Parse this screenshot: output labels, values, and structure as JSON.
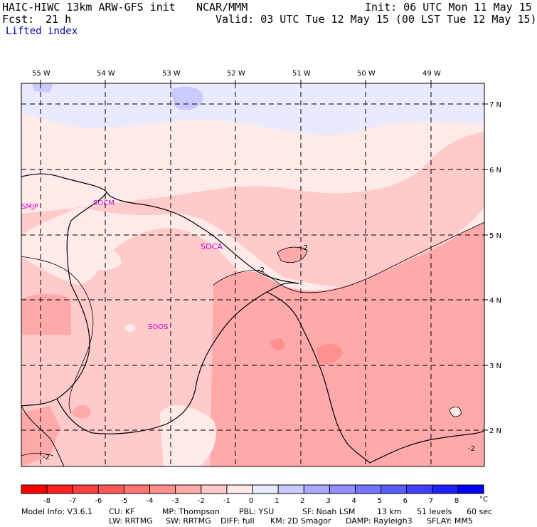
{
  "header": {
    "model": "HAIC-HIWC 13km ARW-GFS init",
    "org": "NCAR/MMM",
    "init": "Init: 06 UTC Mon 11 May 15",
    "fcst_label": "Fcst:",
    "fcst_value": "21 h",
    "valid": "Valid: 03 UTC Tue 12 May 15 (00 LST Tue 12 May 15)",
    "field": "Lifted index"
  },
  "map": {
    "lon_labels": [
      "55 W",
      "54 W",
      "53 W",
      "52 W",
      "51 W",
      "50 W",
      "49 W"
    ],
    "lat_labels": [
      "7 N",
      "6 N",
      "5 N",
      "4 N",
      "3 N",
      "2 N"
    ],
    "stations": [
      "SMJP",
      "SOCM",
      "SOCA",
      "SOOS"
    ],
    "contour_labels": [
      "-2",
      "-2",
      "-2",
      "-2"
    ]
  },
  "colorbar": {
    "ticks": [
      "-8",
      "-7",
      "-6",
      "-5",
      "-4",
      "-3",
      "-2",
      "-1",
      "0",
      "1",
      "2",
      "3",
      "4",
      "5",
      "6",
      "7",
      "8"
    ],
    "unit": "°C",
    "colors": [
      "#ff0000",
      "#ff2020",
      "#ff4040",
      "#ff5a5a",
      "#ff7474",
      "#ff9090",
      "#ffaaaa",
      "#ffcaca",
      "#ffeaea",
      "#eaeaff",
      "#cacaff",
      "#aaaaff",
      "#9090ff",
      "#7474ff",
      "#5a5aff",
      "#4040ff",
      "#2020ff",
      "#0000ff"
    ]
  },
  "footer": {
    "line1": [
      "Model Info: V3.6.1",
      "CU: KF",
      "MP: Thompson",
      "PBL: YSU",
      "SF: Noah LSM",
      "13 km",
      "51 levels",
      "60 sec"
    ],
    "line2": [
      "LW: RRTMG",
      "SW: RRTMG",
      "DIFF: full",
      "KM: 2D Smagor",
      "DAMP: Rayleigh3",
      "SFLAY: MM5"
    ]
  }
}
